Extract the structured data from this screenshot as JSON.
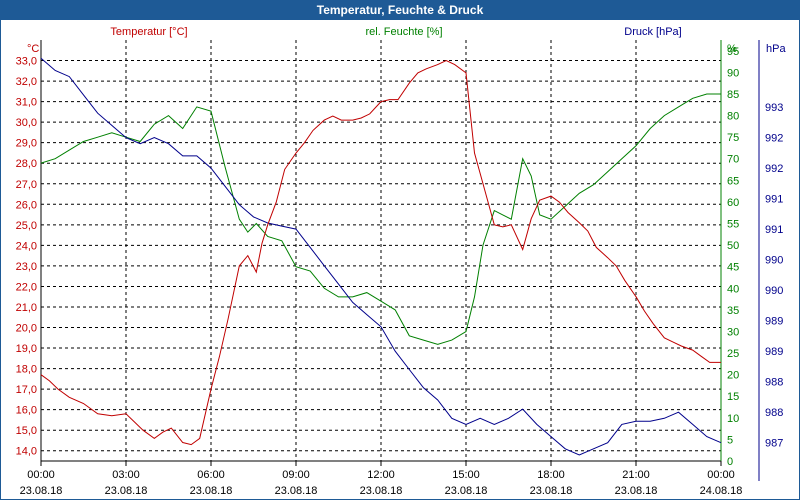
{
  "window": {
    "title": "Temperatur, Feuchte & Druck"
  },
  "chart_data": {
    "type": "line",
    "title": "Temperatur, Feuchte & Druck",
    "x_ticks": [
      {
        "time": "00:00",
        "date": "23.08.18"
      },
      {
        "time": "03:00",
        "date": "23.08.18"
      },
      {
        "time": "06:00",
        "date": "23.08.18"
      },
      {
        "time": "09:00",
        "date": "23.08.18"
      },
      {
        "time": "12:00",
        "date": "23.08.18"
      },
      {
        "time": "15:00",
        "date": "23.08.18"
      },
      {
        "time": "18:00",
        "date": "23.08.18"
      },
      {
        "time": "21:00",
        "date": "23.08.18"
      },
      {
        "time": "00:00",
        "date": "24.08.18"
      }
    ],
    "xlim_hours": [
      0,
      24
    ],
    "temperature": {
      "label": "Temperatur [°C]",
      "unit": "°C",
      "color": "#c00000",
      "ylim": [
        13.5,
        34.0
      ],
      "ticks": [
        "14,0",
        "15,0",
        "16,0",
        "17,0",
        "18,0",
        "19,0",
        "20,0",
        "21,0",
        "22,0",
        "23,0",
        "24,0",
        "25,0",
        "26,0",
        "27,0",
        "28,0",
        "29,0",
        "30,0",
        "31,0",
        "32,0",
        "33,0"
      ],
      "x": [
        0,
        0.3,
        0.6,
        1,
        1.5,
        2,
        2.5,
        3,
        3.3,
        3.6,
        4,
        4.3,
        4.6,
        5,
        5.3,
        5.6,
        6,
        6.3,
        6.6,
        7,
        7.3,
        7.6,
        7.8,
        8,
        8.3,
        8.6,
        9,
        9.3,
        9.6,
        10,
        10.3,
        10.6,
        11,
        11.3,
        11.6,
        12,
        12.3,
        12.6,
        13,
        13.3,
        13.6,
        14,
        14.3,
        14.6,
        15,
        15.3,
        15.6,
        16,
        16.3,
        16.6,
        17,
        17.3,
        17.6,
        18,
        18.3,
        18.6,
        19,
        19.3,
        19.6,
        20,
        20.3,
        20.6,
        21,
        21.3,
        21.6,
        22,
        22.3,
        22.6,
        23,
        23.3,
        23.6,
        24
      ],
      "values": [
        17.7,
        17.4,
        17.0,
        16.6,
        16.3,
        15.8,
        15.7,
        15.8,
        15.4,
        15.0,
        14.6,
        14.9,
        15.1,
        14.4,
        14.3,
        14.6,
        17.0,
        18.6,
        20.4,
        23.0,
        23.5,
        22.7,
        24.1,
        25.0,
        26.1,
        27.7,
        28.5,
        29.0,
        29.6,
        30.1,
        30.3,
        30.1,
        30.1,
        30.2,
        30.4,
        31.0,
        31.1,
        31.1,
        31.9,
        32.4,
        32.6,
        32.8,
        33.0,
        32.8,
        32.4,
        28.5,
        27.0,
        25.0,
        24.9,
        25.0,
        23.8,
        25.3,
        26.2,
        26.4,
        26.1,
        25.6,
        25.1,
        24.7,
        23.9,
        23.4,
        23.0,
        22.3,
        21.5,
        20.8,
        20.2,
        19.5,
        19.3,
        19.1,
        18.9,
        18.6,
        18.3,
        18.3
      ]
    },
    "humidity": {
      "label": "rel. Feuchte [%]",
      "unit": "%",
      "color": "#008000",
      "ylim": [
        0,
        97.5
      ],
      "ticks": [
        "0",
        "5",
        "10",
        "15",
        "20",
        "25",
        "30",
        "35",
        "40",
        "45",
        "50",
        "55",
        "60",
        "65",
        "70",
        "75",
        "80",
        "85",
        "90",
        "95"
      ],
      "x": [
        0,
        0.5,
        1,
        1.5,
        2,
        2.5,
        3,
        3.5,
        4,
        4.5,
        5,
        5.5,
        6,
        6.5,
        7,
        7.3,
        7.6,
        8,
        8.5,
        9,
        9.5,
        10,
        10.5,
        11,
        11.5,
        12,
        12.5,
        13,
        13.5,
        14,
        14.5,
        15,
        15.3,
        15.6,
        16,
        16.3,
        16.6,
        17,
        17.3,
        17.6,
        18,
        18.5,
        19,
        19.5,
        20,
        20.5,
        21,
        21.5,
        22,
        22.5,
        23,
        23.5,
        24
      ],
      "values": [
        69,
        70,
        72,
        74,
        75,
        76,
        75,
        74,
        78,
        80,
        77,
        82,
        81,
        68,
        56,
        53,
        55,
        52,
        51,
        45,
        44,
        40,
        38,
        38,
        39,
        37,
        35,
        29,
        28,
        27,
        28,
        30,
        38,
        50,
        58,
        57,
        56,
        70,
        66,
        57,
        56,
        59,
        62,
        64,
        67,
        70,
        73,
        77,
        80,
        82,
        84,
        85,
        85
      ]
    },
    "pressure": {
      "label": "Druck [hPa]",
      "unit": "hPa",
      "color": "#00008b",
      "ylim": [
        986.7,
        993.6
      ],
      "ticks": [
        {
          "value": 987.0,
          "label": "987"
        },
        {
          "value": 987.5,
          "label": "988"
        },
        {
          "value": 988.0,
          "label": "988"
        },
        {
          "value": 988.5,
          "label": "989"
        },
        {
          "value": 989.0,
          "label": "989"
        },
        {
          "value": 989.5,
          "label": "990"
        },
        {
          "value": 990.0,
          "label": "990"
        },
        {
          "value": 990.5,
          "label": "991"
        },
        {
          "value": 991.0,
          "label": "991"
        },
        {
          "value": 991.5,
          "label": "992"
        },
        {
          "value": 992.0,
          "label": "992"
        },
        {
          "value": 992.5,
          "label": "993"
        }
      ],
      "axis_title": "hPa",
      "x": [
        0,
        0.5,
        1,
        1.5,
        2,
        2.5,
        3,
        3.5,
        4,
        4.5,
        5,
        5.5,
        6,
        6.5,
        7,
        7.5,
        8,
        8.5,
        9,
        9.5,
        10,
        10.5,
        11,
        11.5,
        12,
        12.5,
        13,
        13.5,
        14,
        14.5,
        15,
        15.5,
        16,
        16.5,
        17,
        17.5,
        18,
        18.5,
        19,
        19.5,
        20,
        20.5,
        21,
        21.5,
        22,
        22.5,
        23,
        23.5,
        24
      ],
      "values": [
        993.3,
        993.1,
        993.0,
        992.7,
        992.4,
        992.2,
        992.0,
        991.9,
        992.0,
        991.9,
        991.7,
        991.7,
        991.5,
        991.2,
        990.9,
        990.7,
        990.6,
        990.55,
        990.5,
        990.2,
        989.9,
        989.6,
        989.3,
        989.1,
        988.9,
        988.5,
        988.2,
        987.9,
        987.7,
        987.4,
        987.3,
        987.4,
        987.3,
        987.4,
        987.55,
        987.3,
        987.1,
        986.9,
        986.8,
        986.9,
        987.0,
        987.3,
        987.35,
        987.35,
        987.4,
        987.5,
        987.3,
        987.1,
        987.0
      ]
    }
  }
}
